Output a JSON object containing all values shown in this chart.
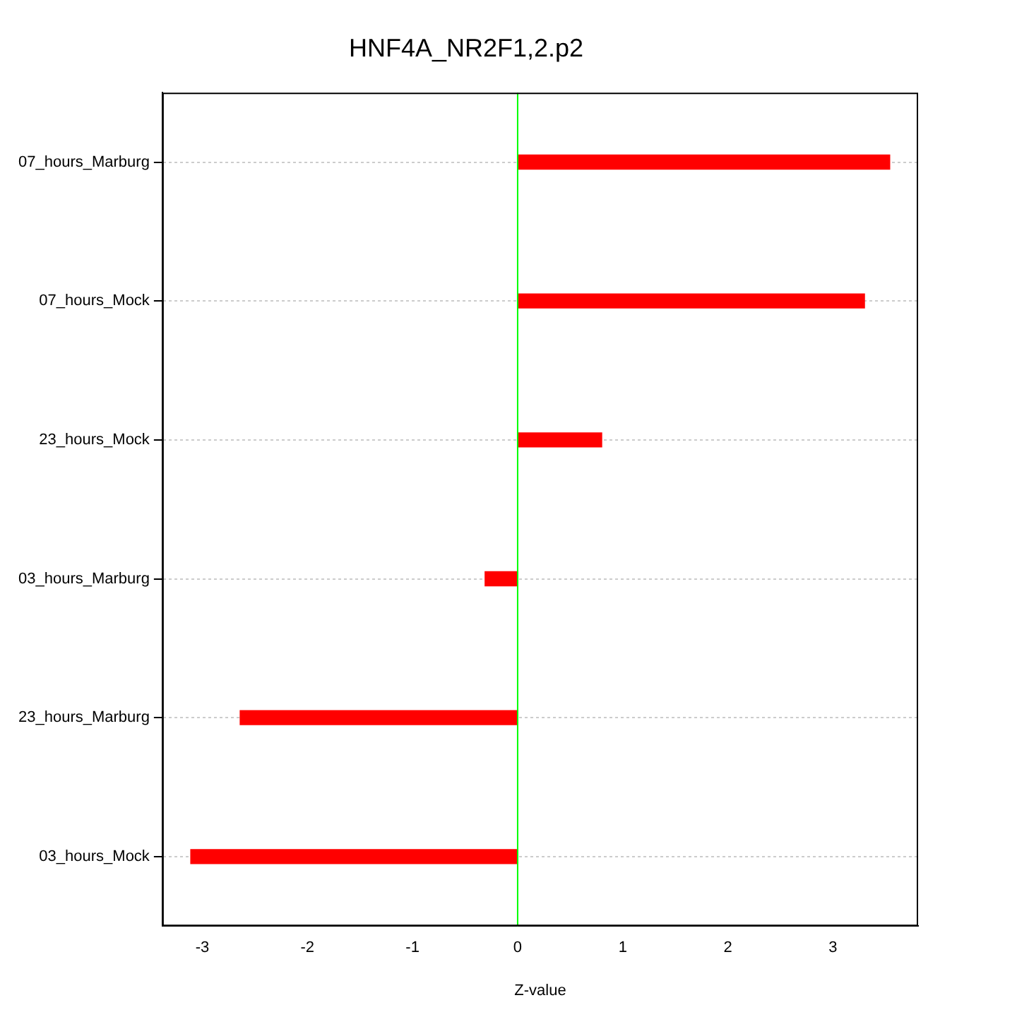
{
  "chart_data": {
    "type": "bar",
    "orientation": "horizontal",
    "title": "HNF4A_NR2F1,2.p2",
    "xlabel": "Z-value",
    "categories": [
      "07_hours_Marburg",
      "07_hours_Mock",
      "23_hours_Mock",
      "03_hours_Marburg",
      "23_hours_Marburg",
      "03_hours_Mock"
    ],
    "values": [
      3.54,
      3.3,
      0.8,
      -0.31,
      -2.64,
      -3.11
    ],
    "color": "#ff0000",
    "xlim": [
      -3.38,
      3.81
    ],
    "xticks": [
      -3,
      -2,
      -1,
      0,
      1,
      2,
      3
    ],
    "grid": "y",
    "ref_lines": [
      {
        "axis": "x",
        "value": 0,
        "color": "#00ff00"
      }
    ]
  }
}
